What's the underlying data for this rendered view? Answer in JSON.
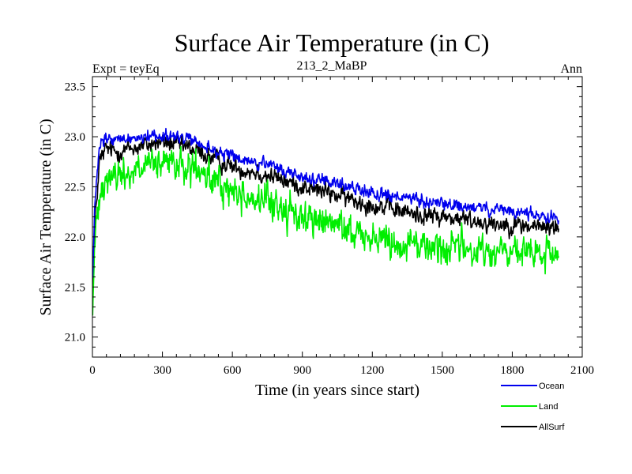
{
  "chart_data": {
    "type": "line",
    "title": "Surface Air Temperature (in C)",
    "subtitle_left": "Expt = teyEq",
    "subtitle_center": "213_2_MaBP",
    "subtitle_right": "Ann",
    "xlabel": "Time (in years since start)",
    "ylabel": "Surface Air Temperature (in C)",
    "xlim": [
      0,
      2100
    ],
    "ylim": [
      20.8,
      23.6
    ],
    "xticks": [
      0,
      300,
      600,
      900,
      1200,
      1500,
      1800,
      2100
    ],
    "yticks": [
      21.0,
      21.5,
      22.0,
      22.5,
      23.0,
      23.5
    ],
    "ytick_labels": [
      "21.0",
      "21.5",
      "22.0",
      "22.5",
      "23.0",
      "23.5"
    ],
    "x_range": [
      1,
      2000
    ],
    "series": [
      {
        "name": "AllSurf",
        "color": "#000000",
        "mean_x": [
          0,
          10,
          30,
          60,
          100,
          200,
          300,
          400,
          500,
          600,
          700,
          800,
          900,
          1000,
          1100,
          1200,
          1300,
          1400,
          1500,
          1600,
          1700,
          1800,
          1900,
          2000
        ],
        "mean_y": [
          21.3,
          22.1,
          22.75,
          22.88,
          22.85,
          22.9,
          22.95,
          22.9,
          22.8,
          22.7,
          22.65,
          22.58,
          22.5,
          22.45,
          22.38,
          22.32,
          22.27,
          22.22,
          22.2,
          22.17,
          22.14,
          22.12,
          22.1,
          22.1
        ],
        "noise_amp": 0.14
      },
      {
        "name": "Land",
        "color": "#00ee00",
        "mean_x": [
          0,
          10,
          30,
          60,
          100,
          200,
          300,
          400,
          500,
          600,
          700,
          800,
          900,
          1000,
          1100,
          1200,
          1300,
          1400,
          1500,
          1600,
          1700,
          1800,
          1900,
          2000
        ],
        "mean_y": [
          21.2,
          21.9,
          22.5,
          22.62,
          22.6,
          22.68,
          22.72,
          22.7,
          22.58,
          22.45,
          22.38,
          22.3,
          22.2,
          22.14,
          22.07,
          22.0,
          21.96,
          21.92,
          21.9,
          21.88,
          21.85,
          21.84,
          21.82,
          21.82
        ],
        "noise_amp": 0.26
      },
      {
        "name": "Ocean",
        "color": "#0000ee",
        "mean_x": [
          0,
          10,
          30,
          60,
          100,
          200,
          300,
          400,
          500,
          600,
          700,
          800,
          900,
          1000,
          1100,
          1200,
          1300,
          1400,
          1500,
          1600,
          1700,
          1800,
          1900,
          2000
        ],
        "mean_y": [
          21.5,
          22.3,
          22.9,
          22.98,
          22.96,
          23.0,
          23.02,
          22.98,
          22.88,
          22.8,
          22.74,
          22.68,
          22.6,
          22.55,
          22.5,
          22.45,
          22.4,
          22.36,
          22.33,
          22.3,
          22.27,
          22.25,
          22.22,
          22.2
        ],
        "noise_amp": 0.1
      }
    ],
    "legend": [
      {
        "label": "Ocean",
        "color": "#0000ee"
      },
      {
        "label": "Land",
        "color": "#00ee00"
      },
      {
        "label": "AllSurf",
        "color": "#000000"
      }
    ],
    "legend_position": "bottom-right"
  }
}
